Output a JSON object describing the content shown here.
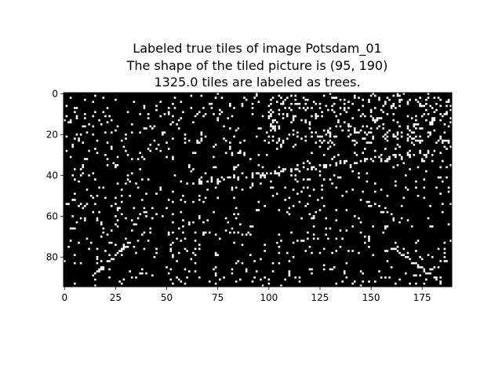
{
  "chart_data": {
    "type": "heatmap",
    "title_lines": [
      "Labeled true tiles of image Potsdam_01",
      "The shape of the tiled picture is (95, 190)",
      "1325.0 tiles are labeled as trees."
    ],
    "grid_shape": [
      95,
      190
    ],
    "labeled_count": 1325,
    "x_ticks": [
      "0",
      "25",
      "50",
      "75",
      "100",
      "125",
      "150",
      "175"
    ],
    "x_tick_values": [
      0,
      25,
      50,
      75,
      100,
      125,
      150,
      175
    ],
    "y_ticks": [
      "0",
      "20",
      "40",
      "60",
      "80"
    ],
    "y_tick_values": [
      0,
      20,
      40,
      60,
      80
    ],
    "xlim": [
      -0.5,
      189.5
    ],
    "ylim": [
      94.5,
      -0.5
    ],
    "colors": {
      "background": "#000000",
      "labeled": "#ffffff",
      "frame": "#000000"
    },
    "pattern_description_seed": 42
  }
}
